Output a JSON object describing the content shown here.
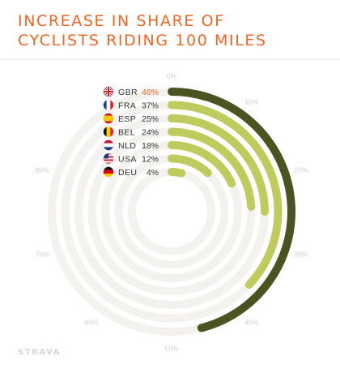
{
  "header": {
    "title_line1": "INCREASE IN SHARE OF",
    "title_line2": "CYCLISTS RIDING 100 MILES"
  },
  "brand": {
    "name": "STRAVA"
  },
  "colors": {
    "title": "#f26522",
    "highlight_label": "#f26522",
    "leader_arc": "#4b5320",
    "other_arcs": "#bfcb5d",
    "track": "#f3f2ee",
    "tick_label": "#cfcfcf",
    "country_label": "#333333"
  },
  "chart_data": {
    "type": "radial-bar",
    "title": "INCREASE IN SHARE OF CYCLISTS RIDING 100 MILES",
    "unit": "%",
    "axis": {
      "min": 0,
      "max": 100,
      "ticks": [
        {
          "value": 0,
          "label": "0%"
        },
        {
          "value": 10,
          "label": "10%"
        },
        {
          "value": 20,
          "label": "20%"
        },
        {
          "value": 30,
          "label": "30%"
        },
        {
          "value": 40,
          "label": "40%"
        },
        {
          "value": 50,
          "label": "50%"
        },
        {
          "value": 60,
          "label": "60%"
        },
        {
          "value": 70,
          "label": "70%"
        },
        {
          "value": 80,
          "label": "80%"
        }
      ]
    },
    "series": [
      {
        "code": "GBR",
        "flag": "uk-flag-icon",
        "value": 46,
        "label": "46%",
        "highlight": true
      },
      {
        "code": "FRA",
        "flag": "france-flag-icon",
        "value": 37,
        "label": "37%",
        "highlight": false
      },
      {
        "code": "ESP",
        "flag": "spain-flag-icon",
        "value": 25,
        "label": "25%",
        "highlight": false
      },
      {
        "code": "BEL",
        "flag": "belgium-flag-icon",
        "value": 24,
        "label": "24%",
        "highlight": false
      },
      {
        "code": "NLD",
        "flag": "netherlands-flag-icon",
        "value": 18,
        "label": "18%",
        "highlight": false
      },
      {
        "code": "USA",
        "flag": "usa-flag-icon",
        "value": 12,
        "label": "12%",
        "highlight": false
      },
      {
        "code": "DEU",
        "flag": "germany-flag-icon",
        "value": 4,
        "label": "4%",
        "highlight": false
      }
    ]
  }
}
